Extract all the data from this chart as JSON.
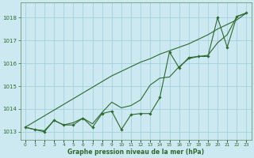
{
  "x": [
    0,
    1,
    2,
    3,
    4,
    5,
    6,
    7,
    8,
    9,
    10,
    11,
    12,
    13,
    14,
    15,
    16,
    17,
    18,
    19,
    20,
    21,
    22,
    23
  ],
  "y_markers": [
    1013.2,
    1013.1,
    1013.0,
    1013.5,
    1013.3,
    1013.3,
    1013.6,
    1013.2,
    1013.8,
    1013.9,
    1013.1,
    1013.75,
    1013.8,
    1013.8,
    1014.5,
    1016.5,
    1015.8,
    1016.25,
    1016.3,
    1016.3,
    1018.0,
    1016.7,
    1018.05,
    1018.2
  ],
  "y_smooth": [
    1013.2,
    1013.1,
    1013.05,
    1013.5,
    1013.3,
    1013.4,
    1013.6,
    1013.35,
    1013.85,
    1014.3,
    1014.05,
    1014.15,
    1014.4,
    1015.05,
    1015.35,
    1015.4,
    1015.85,
    1016.2,
    1016.3,
    1016.35,
    1016.9,
    1017.25,
    1018.05,
    1018.2
  ],
  "y_trend": [
    1013.2,
    1013.45,
    1013.7,
    1013.95,
    1014.2,
    1014.45,
    1014.7,
    1014.95,
    1015.2,
    1015.45,
    1015.65,
    1015.85,
    1016.05,
    1016.2,
    1016.4,
    1016.55,
    1016.7,
    1016.85,
    1017.05,
    1017.25,
    1017.5,
    1017.7,
    1017.9,
    1018.2
  ],
  "line_color": "#2d6a2d",
  "bg_color": "#cce8f0",
  "grid_color": "#9cccd8",
  "xlabel": "Graphe pression niveau de la mer (hPa)",
  "ylabel_ticks": [
    1013,
    1014,
    1015,
    1016,
    1017,
    1018
  ],
  "ylim": [
    1012.65,
    1018.65
  ],
  "xlim": [
    -0.5,
    23.5
  ]
}
